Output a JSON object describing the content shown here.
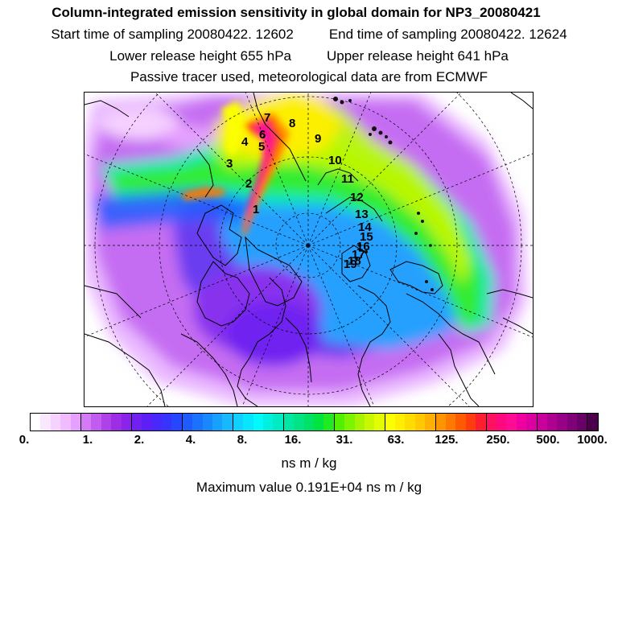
{
  "header": {
    "title": "Column-integrated emission sensitivity in global domain for NP3_20080421",
    "start_time": "Start time of sampling 20080422. 12602",
    "end_time": "End time of sampling 20080422. 12624",
    "lower_release": "Lower release height  655 hPa",
    "upper_release": "Upper release height  641 hPa",
    "note": "Passive tracer used, meteorological data are from ECMWF"
  },
  "map": {
    "projection": "polar stereographic",
    "trajectory_labels": [
      "1",
      "2",
      "3",
      "4",
      "5",
      "6",
      "7",
      "8",
      "9",
      "10",
      "11",
      "12",
      "13",
      "14",
      "15",
      "16",
      "17",
      "18",
      "19"
    ]
  },
  "colorbar": {
    "tick_labels": [
      "0.",
      "1.",
      "2.",
      "4.",
      "8.",
      "16.",
      "31.",
      "63.",
      "125.",
      "250.",
      "500.",
      "1000."
    ],
    "units": "ns m / kg",
    "colors": [
      "#ffffff",
      "#fbe6ff",
      "#f6d2ff",
      "#efbcff",
      "#e6a0ff",
      "#d47af7",
      "#c25bf0",
      "#b040e8",
      "#9d2ee6",
      "#8a24ea",
      "#7020f0",
      "#5c20f6",
      "#4828fa",
      "#3634fd",
      "#2746ff",
      "#1e5cff",
      "#1a72ff",
      "#1888ff",
      "#18a0ff",
      "#18b8ff",
      "#10d0ff",
      "#08e6ff",
      "#00fafa",
      "#00f0e0",
      "#00eac4",
      "#00e6a4",
      "#00e486",
      "#00e266",
      "#00e440",
      "#20ea20",
      "#50f000",
      "#7cf400",
      "#a8f400",
      "#c8f800",
      "#e4fc00",
      "#fcff00",
      "#ffee00",
      "#ffdc00",
      "#ffc800",
      "#ffb000",
      "#ff9400",
      "#ff7800",
      "#ff5a00",
      "#ff3c10",
      "#ff1e30",
      "#ff1060",
      "#ff0880",
      "#ff0c94",
      "#f000a0",
      "#dc00a0",
      "#c8009c",
      "#b00090",
      "#980088",
      "#800078",
      "#680068",
      "#4c004c"
    ]
  },
  "max_value": "Maximum value  0.191E+04 ns m / kg"
}
